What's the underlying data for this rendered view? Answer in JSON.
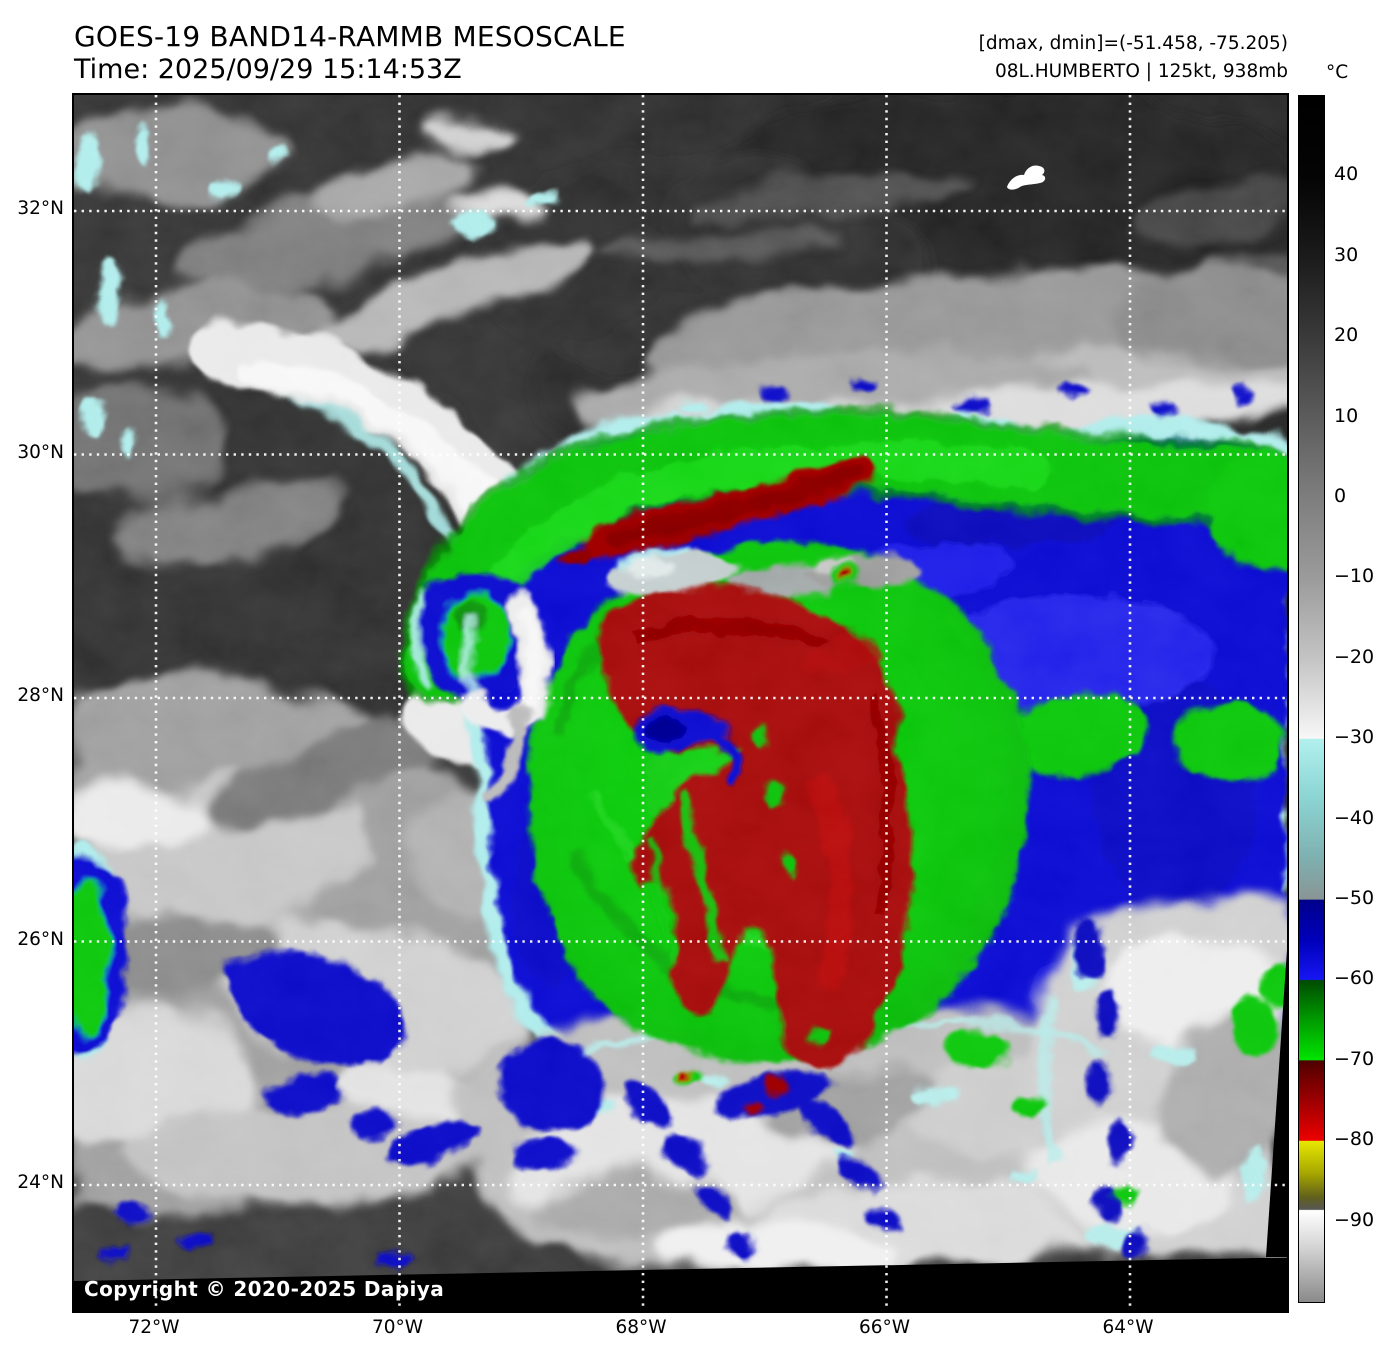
{
  "header": {
    "title_line1": "GOES-19 BAND14-RAMMB MESOSCALE",
    "title_line2": "Time: 2025/09/29 15:14:53Z",
    "annotation_line1": "[dmax, dmin]=(-51.458, -75.205)",
    "annotation_line2": "08L.HUMBERTO | 125kt, 938mb"
  },
  "colorbar": {
    "unit": "°C",
    "domain": [
      50,
      -100
    ],
    "ticks": [
      40,
      30,
      20,
      10,
      0,
      -10,
      -20,
      -30,
      -40,
      -50,
      -60,
      -70,
      -80,
      -90
    ],
    "gradient_stops": [
      {
        "v": 50,
        "c": "#000000"
      },
      {
        "v": 40,
        "c": "#040404"
      },
      {
        "v": 30,
        "c": "#1b1b1b"
      },
      {
        "v": 20,
        "c": "#3a3a3a"
      },
      {
        "v": 10,
        "c": "#5c5c5c"
      },
      {
        "v": 0,
        "c": "#7e7e7e"
      },
      {
        "v": -10,
        "c": "#9b9b9b"
      },
      {
        "v": -20,
        "c": "#c4c4c4"
      },
      {
        "v": -29.9,
        "c": "#f7f7f7"
      },
      {
        "v": -30,
        "c": "#b2f0ee"
      },
      {
        "v": -37,
        "c": "#8cd6d4"
      },
      {
        "v": -45,
        "c": "#7fafaf"
      },
      {
        "v": -49.9,
        "c": "#899595"
      },
      {
        "v": -50,
        "c": "#00008b"
      },
      {
        "v": -55,
        "c": "#0000bb"
      },
      {
        "v": -59.9,
        "c": "#1616f2"
      },
      {
        "v": -60,
        "c": "#004c00"
      },
      {
        "v": -65,
        "c": "#009c00"
      },
      {
        "v": -69.9,
        "c": "#00e400"
      },
      {
        "v": -70,
        "c": "#4f0000"
      },
      {
        "v": -75,
        "c": "#9e0000"
      },
      {
        "v": -79.9,
        "c": "#ec0000"
      },
      {
        "v": -80,
        "c": "#e6e600"
      },
      {
        "v": -84,
        "c": "#a6a600"
      },
      {
        "v": -87,
        "c": "#60601c"
      },
      {
        "v": -88.5,
        "c": "#575757"
      },
      {
        "v": -88.6,
        "c": "#ffffff"
      },
      {
        "v": -93,
        "c": "#d6d6d6"
      },
      {
        "v": -100,
        "c": "#8a8a8a"
      }
    ]
  },
  "map": {
    "copyright": "Copyright © 2020-2025 Dapiya",
    "latitudes": [
      {
        "deg": 32,
        "label": "32°N"
      },
      {
        "deg": 30,
        "label": "30°N"
      },
      {
        "deg": 28,
        "label": "28°N"
      },
      {
        "deg": 26,
        "label": "26°N"
      },
      {
        "deg": 24,
        "label": "24°N"
      }
    ],
    "longitudes": [
      {
        "deg": 72,
        "label": "72°W"
      },
      {
        "deg": 70,
        "label": "70°W"
      },
      {
        "deg": 68,
        "label": "68°W"
      },
      {
        "deg": 66,
        "label": "66°W"
      },
      {
        "deg": 64,
        "label": "64°W"
      }
    ]
  },
  "palette": {
    "background": "#ffffff",
    "text": "#000000",
    "map-base": "#343434",
    "cloud-gray": "#a8a8a8",
    "cloud-white": "#e9e9e9",
    "cyan": "#aeeceb",
    "blue": "#0d0dd2",
    "navy": "#000090",
    "green": "#0ec60e",
    "green-dark": "#079007",
    "red": "#a50808",
    "red-dark": "#7c0303",
    "yellow": "#e6e600",
    "gray-slot": "#c3cdcd",
    "grid": "#ffffff",
    "nodata": "#000000"
  }
}
